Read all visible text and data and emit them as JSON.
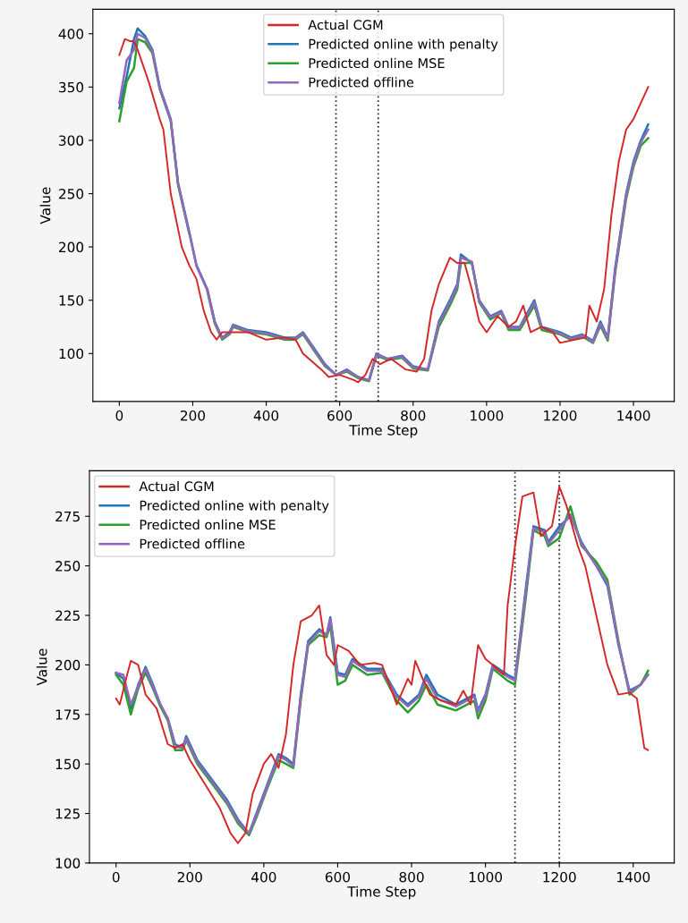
{
  "chart_data": [
    {
      "type": "line",
      "xlabel": "Time Step",
      "ylabel": "Value",
      "xlim": [
        -72,
        1511
      ],
      "ylim": [
        55,
        423
      ],
      "xticks": [
        0,
        200,
        400,
        600,
        800,
        1000,
        1200,
        1400
      ],
      "yticks": [
        100,
        150,
        200,
        250,
        300,
        350,
        400
      ],
      "grid": false,
      "legend": "top",
      "marker": "none",
      "line_style": "solid",
      "ref_lines": [
        {
          "axis": "x",
          "value": 590,
          "color": "#333333",
          "line_style": "dotted"
        },
        {
          "axis": "x",
          "value": 705,
          "color": "#333333",
          "line_style": "dotted"
        }
      ],
      "series": [
        {
          "name": "Actual CGM",
          "color": "#d62728",
          "x": [
            0,
            15,
            30,
            40,
            50,
            80,
            110,
            120,
            140,
            170,
            190,
            210,
            230,
            250,
            265,
            280,
            300,
            350,
            400,
            450,
            480,
            500,
            550,
            570,
            600,
            640,
            650,
            670,
            690,
            710,
            740,
            780,
            810,
            830,
            850,
            870,
            900,
            920,
            940,
            960,
            980,
            1000,
            1030,
            1060,
            1080,
            1100,
            1120,
            1150,
            1180,
            1200,
            1240,
            1270,
            1280,
            1300,
            1320,
            1340,
            1360,
            1380,
            1400,
            1420,
            1440
          ],
          "values": [
            380,
            395,
            393,
            393,
            385,
            355,
            320,
            310,
            250,
            200,
            183,
            170,
            140,
            120,
            113,
            120,
            120,
            120,
            113,
            115,
            113,
            100,
            85,
            78,
            80,
            75,
            73,
            80,
            95,
            90,
            95,
            85,
            83,
            95,
            140,
            165,
            190,
            185,
            185,
            160,
            130,
            120,
            135,
            125,
            130,
            145,
            120,
            125,
            120,
            110,
            113,
            115,
            145,
            130,
            160,
            230,
            280,
            310,
            320,
            335,
            350
          ]
        },
        {
          "name": "Predicted online with penalty",
          "color": "#1f77b4",
          "x": [
            0,
            20,
            40,
            50,
            70,
            90,
            110,
            140,
            160,
            190,
            210,
            240,
            260,
            280,
            300,
            310,
            350,
            400,
            450,
            480,
            500,
            530,
            560,
            590,
            620,
            650,
            680,
            700,
            730,
            770,
            800,
            840,
            870,
            900,
            920,
            930,
            960,
            980,
            1010,
            1040,
            1060,
            1090,
            1130,
            1150,
            1200,
            1230,
            1260,
            1290,
            1310,
            1330,
            1350,
            1380,
            1400,
            1420,
            1440
          ],
          "values": [
            330,
            360,
            395,
            405,
            398,
            385,
            350,
            320,
            260,
            215,
            183,
            160,
            130,
            115,
            120,
            127,
            122,
            120,
            115,
            115,
            120,
            105,
            90,
            80,
            85,
            78,
            75,
            100,
            95,
            98,
            88,
            85,
            130,
            150,
            165,
            193,
            185,
            150,
            135,
            140,
            125,
            125,
            150,
            125,
            120,
            115,
            118,
            112,
            130,
            115,
            180,
            250,
            280,
            300,
            315
          ]
        },
        {
          "name": "Predicted online MSE",
          "color": "#2ca02c",
          "x": [
            0,
            20,
            40,
            50,
            70,
            90,
            110,
            140,
            160,
            190,
            210,
            240,
            260,
            280,
            300,
            310,
            350,
            400,
            450,
            480,
            500,
            530,
            560,
            590,
            620,
            650,
            680,
            700,
            730,
            770,
            800,
            840,
            870,
            900,
            920,
            930,
            960,
            980,
            1010,
            1040,
            1060,
            1090,
            1130,
            1150,
            1200,
            1230,
            1260,
            1290,
            1310,
            1330,
            1350,
            1380,
            1400,
            1420,
            1440
          ],
          "values": [
            318,
            355,
            368,
            395,
            392,
            382,
            348,
            318,
            258,
            213,
            null,
            158,
            128,
            113,
            118,
            125,
            120,
            118,
            113,
            113,
            118,
            103,
            88,
            80,
            83,
            77,
            74,
            98,
            94,
            96,
            86,
            84,
            125,
            145,
            160,
            185,
            185,
            148,
            132,
            138,
            122,
            122,
            145,
            122,
            118,
            113,
            116,
            110,
            126,
            112,
            175,
            245,
            275,
            295,
            302
          ]
        },
        {
          "name": "Predicted offline",
          "color": "#9467bd",
          "x": [
            0,
            20,
            40,
            50,
            70,
            90,
            110,
            140,
            160,
            190,
            210,
            240,
            260,
            280,
            300,
            310,
            350,
            400,
            450,
            480,
            500,
            530,
            560,
            590,
            620,
            650,
            680,
            700,
            730,
            770,
            800,
            840,
            870,
            900,
            920,
            930,
            960,
            980,
            1010,
            1040,
            1060,
            1090,
            1130,
            1150,
            1200,
            1230,
            1260,
            1290,
            1310,
            1330,
            1350,
            1380,
            1400,
            1420,
            1440
          ],
          "values": [
            335,
            375,
            385,
            400,
            396,
            384,
            349,
            319,
            259,
            214,
            182,
            159,
            129,
            114,
            119,
            126,
            121,
            119,
            114,
            114,
            119,
            104,
            89,
            80,
            84,
            78,
            75,
            99,
            95,
            97,
            87,
            85,
            128,
            148,
            163,
            190,
            186,
            149,
            134,
            139,
            124,
            124,
            148,
            124,
            119,
            114,
            117,
            111,
            128,
            114,
            178,
            248,
            278,
            298,
            310
          ]
        }
      ]
    },
    {
      "type": "line",
      "xlabel": "Time Step",
      "ylabel": "Value",
      "xlim": [
        -72,
        1511
      ],
      "ylim": [
        100,
        298
      ],
      "xticks": [
        0,
        200,
        400,
        600,
        800,
        1000,
        1200,
        1400
      ],
      "yticks": [
        100,
        125,
        150,
        175,
        200,
        225,
        250,
        275
      ],
      "grid": false,
      "legend": "top left",
      "marker": "none",
      "line_style": "solid",
      "ref_lines": [
        {
          "axis": "x",
          "value": 1080,
          "color": "#333333",
          "line_style": "dotted"
        },
        {
          "axis": "x",
          "value": 1200,
          "color": "#333333",
          "line_style": "dotted"
        }
      ],
      "series": [
        {
          "name": "Actual CGM",
          "color": "#d62728",
          "x": [
            0,
            10,
            30,
            40,
            60,
            80,
            110,
            140,
            160,
            180,
            200,
            240,
            280,
            310,
            330,
            350,
            370,
            400,
            420,
            440,
            460,
            480,
            500,
            530,
            550,
            570,
            590,
            600,
            630,
            660,
            700,
            720,
            740,
            760,
            790,
            800,
            810,
            830,
            850,
            880,
            920,
            940,
            960,
            980,
            1000,
            1020,
            1050,
            1060,
            1080,
            1100,
            1130,
            1150,
            1180,
            1200,
            1220,
            1250,
            1270,
            1300,
            1330,
            1360,
            1390,
            1410,
            1430,
            1440
          ],
          "values": [
            183,
            180,
            195,
            202,
            200,
            185,
            178,
            160,
            158,
            160,
            152,
            140,
            128,
            115,
            110,
            115,
            135,
            150,
            155,
            148,
            165,
            200,
            222,
            225,
            230,
            205,
            200,
            210,
            207,
            200,
            201,
            200,
            190,
            180,
            193,
            190,
            202,
            193,
            185,
            182,
            180,
            187,
            180,
            210,
            203,
            200,
            195,
            230,
            260,
            285,
            287,
            265,
            270,
            290,
            280,
            260,
            250,
            225,
            200,
            185,
            186,
            183,
            158,
            157
          ]
        },
        {
          "name": "Predicted online with penalty",
          "color": "#1f77b4",
          "x": [
            0,
            20,
            40,
            60,
            80,
            100,
            120,
            140,
            160,
            180,
            190,
            220,
            260,
            300,
            330,
            360,
            380,
            410,
            440,
            460,
            480,
            500,
            520,
            550,
            570,
            580,
            600,
            620,
            640,
            680,
            720,
            760,
            790,
            820,
            840,
            870,
            920,
            970,
            980,
            1000,
            1020,
            1060,
            1080,
            1110,
            1130,
            1160,
            1170,
            1200,
            1230,
            1260,
            1300,
            1330,
            1360,
            1390,
            1420,
            1440
          ],
          "values": [
            196,
            193,
            178,
            190,
            199,
            190,
            180,
            173,
            160,
            158,
            164,
            152,
            142,
            132,
            122,
            115,
            125,
            140,
            155,
            153,
            150,
            185,
            212,
            218,
            215,
            224,
            196,
            195,
            203,
            198,
            198,
            185,
            180,
            185,
            195,
            185,
            180,
            185,
            177,
            185,
            200,
            195,
            193,
            240,
            270,
            268,
            262,
            270,
            275,
            262,
            250,
            240,
            210,
            187,
            190,
            195
          ]
        },
        {
          "name": "Predicted online MSE",
          "color": "#2ca02c",
          "x": [
            0,
            20,
            40,
            60,
            80,
            100,
            120,
            140,
            160,
            180,
            190,
            220,
            260,
            300,
            330,
            360,
            380,
            410,
            440,
            460,
            480,
            500,
            520,
            550,
            570,
            580,
            600,
            620,
            640,
            680,
            720,
            760,
            790,
            820,
            840,
            870,
            920,
            970,
            980,
            1000,
            1020,
            1060,
            1080,
            1110,
            1130,
            1160,
            1170,
            1200,
            1230,
            1260,
            1300,
            1330,
            1360,
            1390,
            1420,
            1440
          ],
          "values": [
            195,
            190,
            175,
            188,
            196,
            188,
            179,
            172,
            157,
            157,
            162,
            150,
            140,
            130,
            120,
            114,
            123,
            138,
            152,
            150,
            148,
            182,
            210,
            215,
            214,
            220,
            190,
            192,
            200,
            195,
            196,
            182,
            176,
            182,
            190,
            180,
            177,
            182,
            173,
            182,
            198,
            192,
            190,
            235,
            268,
            265,
            260,
            264,
            280,
            260,
            252,
            243,
            212,
            185,
            190,
            197
          ]
        },
        {
          "name": "Predicted offline",
          "color": "#9467bd",
          "x": [
            0,
            20,
            40,
            60,
            80,
            100,
            120,
            140,
            160,
            180,
            190,
            220,
            260,
            300,
            330,
            360,
            380,
            410,
            440,
            460,
            480,
            500,
            520,
            550,
            570,
            580,
            600,
            620,
            640,
            680,
            720,
            760,
            790,
            820,
            840,
            870,
            920,
            970,
            980,
            1000,
            1020,
            1060,
            1080,
            1110,
            1130,
            1160,
            1170,
            1200,
            1230,
            1260,
            1300,
            1330,
            1360,
            1390,
            1420,
            1440
          ],
          "values": [
            196,
            195,
            180,
            189,
            198,
            189,
            180,
            173,
            159,
            158,
            163,
            151,
            141,
            131,
            121,
            115,
            124,
            139,
            154,
            152,
            149,
            184,
            211,
            217,
            215,
            223,
            195,
            194,
            202,
            197,
            197,
            184,
            179,
            184,
            193,
            183,
            179,
            184,
            176,
            184,
            199,
            194,
            192,
            238,
            269,
            267,
            261,
            268,
            276,
            261,
            250,
            241,
            211,
            186,
            190,
            195
          ]
        }
      ]
    }
  ]
}
